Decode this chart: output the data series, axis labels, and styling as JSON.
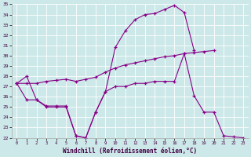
{
  "xlabel": "Windchill (Refroidissement éolien,°C)",
  "background_color": "#cce8e8",
  "grid_color": "#ffffff",
  "line_color": "#880088",
  "xlim": [
    -0.5,
    23.5
  ],
  "ylim": [
    22,
    35
  ],
  "yticks": [
    22,
    23,
    24,
    25,
    26,
    27,
    28,
    29,
    30,
    31,
    32,
    33,
    34,
    35
  ],
  "xticks": [
    0,
    1,
    2,
    3,
    4,
    5,
    6,
    7,
    8,
    9,
    10,
    11,
    12,
    13,
    14,
    15,
    16,
    17,
    18,
    19,
    20,
    21,
    22,
    23
  ],
  "line1_x": [
    0,
    1,
    2,
    3,
    4,
    5,
    6,
    7,
    8,
    9,
    10,
    11,
    12,
    13,
    14,
    15,
    16,
    17,
    18,
    19,
    20,
    21,
    22,
    23
  ],
  "line1_y": [
    27.3,
    28.0,
    25.7,
    25.1,
    25.1,
    25.1,
    22.2,
    22.0,
    24.5,
    26.5,
    30.8,
    32.4,
    33.5,
    34.0,
    34.1,
    34.5,
    34.9,
    34.2,
    30.5,
    null,
    null,
    null,
    null,
    null
  ],
  "line2_x": [
    0,
    1,
    2,
    3,
    4,
    5,
    6,
    7,
    8,
    9,
    10,
    11,
    12,
    13,
    14,
    15,
    16,
    17,
    18,
    19,
    20,
    21,
    22,
    23
  ],
  "line2_y": [
    27.3,
    27.3,
    27.3,
    27.5,
    27.6,
    27.7,
    27.5,
    27.7,
    27.9,
    28.4,
    28.8,
    29.1,
    29.3,
    29.5,
    29.7,
    29.9,
    30.0,
    30.2,
    30.3,
    30.4,
    30.5,
    null,
    null,
    null
  ],
  "line3_x": [
    0,
    1,
    2,
    3,
    4,
    5,
    6,
    7,
    8,
    9,
    10,
    11,
    12,
    13,
    14,
    15,
    16,
    17,
    18,
    19,
    20,
    21,
    22,
    23
  ],
  "line3_y": [
    27.3,
    25.7,
    25.7,
    25.0,
    25.0,
    25.0,
    22.2,
    22.0,
    24.5,
    26.5,
    27.0,
    27.0,
    27.3,
    27.3,
    27.5,
    27.5,
    27.5,
    30.2,
    26.1,
    24.5,
    24.5,
    22.2,
    22.1,
    22.0
  ]
}
